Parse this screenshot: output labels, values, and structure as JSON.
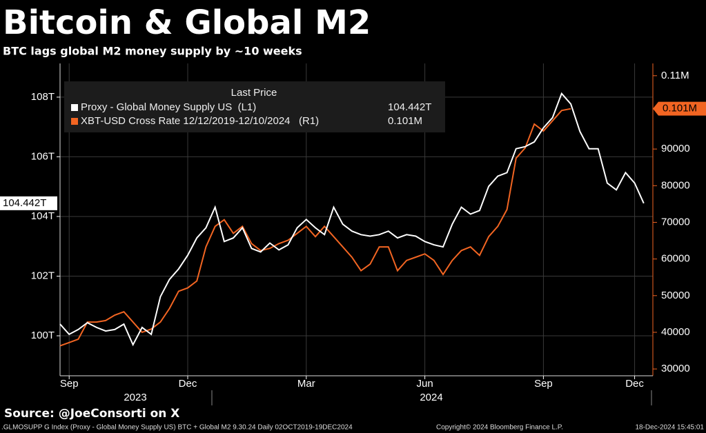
{
  "chart_data": {
    "type": "line",
    "title": "Bitcoin & Global M2",
    "subtitle": "BTC lags global M2 money supply by ~10 weeks",
    "source": "Source: @JoeConsorti on X",
    "footer_left": ".GLMOSUPP G Index (Proxy - Global Money Supply US) BTC + Global M2 9.30.24  Daily 02OCT2019-19DEC2024",
    "footer_center": "Copyright© 2024 Bloomberg Finance L.P.",
    "footer_right": "18-Dec-2024 15:45:01",
    "legend_title": "Last Price",
    "years": [
      "2023",
      "2024"
    ],
    "categories": [
      null,
      "Sep",
      null,
      null,
      null,
      null,
      null,
      null,
      null,
      null,
      null,
      null,
      null,
      null,
      "Dec",
      null,
      null,
      null,
      null,
      null,
      null,
      null,
      null,
      null,
      null,
      null,
      null,
      "Mar",
      null,
      null,
      null,
      null,
      null,
      null,
      null,
      null,
      null,
      null,
      null,
      null,
      "Jun",
      null,
      null,
      null,
      null,
      null,
      null,
      null,
      null,
      null,
      null,
      null,
      null,
      "Sep",
      null,
      null,
      null,
      null,
      null,
      null,
      null,
      null,
      null,
      "Dec",
      null,
      null
    ],
    "series": [
      {
        "name": "Proxy - Global Money Supply US  (L1)",
        "color": "#ffffff",
        "axis": "y",
        "last_price": {
          "value": 104.442,
          "label": "104.442T"
        },
        "values": [
          100.39,
          100.05,
          100.21,
          100.44,
          100.28,
          100.16,
          100.21,
          100.39,
          99.7,
          100.28,
          100.05,
          101.31,
          101.89,
          102.24,
          102.7,
          103.28,
          103.62,
          104.31,
          103.16,
          103.28,
          103.62,
          102.93,
          102.81,
          103.11,
          102.88,
          103.05,
          103.62,
          103.9,
          103.62,
          103.39,
          104.31,
          103.74,
          103.51,
          103.39,
          103.34,
          103.39,
          103.51,
          103.28,
          103.39,
          103.34,
          103.16,
          103.05,
          102.98,
          103.74,
          104.31,
          104.08,
          104.2,
          105.01,
          105.35,
          105.47,
          106.27,
          106.34,
          106.5,
          106.97,
          107.31,
          108.12,
          107.77,
          106.85,
          106.27,
          106.27,
          105.12,
          104.89,
          105.47,
          105.12,
          104.442,
          null
        ]
      },
      {
        "name": "XBT-USD Cross Rate 12/12/2019-12/10/2024   (R1)",
        "color": "#f26522",
        "axis": "y2",
        "last_price": {
          "value": 101000,
          "label": "0.101M"
        },
        "values": [
          36300,
          37200,
          38100,
          42800,
          42800,
          43200,
          44700,
          45600,
          42800,
          40000,
          40900,
          42800,
          46500,
          51200,
          52100,
          54000,
          63300,
          68900,
          70700,
          67000,
          68900,
          64200,
          62300,
          62900,
          64200,
          65100,
          67000,
          68900,
          66100,
          68900,
          66100,
          63300,
          60500,
          56800,
          58600,
          63300,
          63300,
          56800,
          59600,
          60500,
          61400,
          59600,
          55800,
          59600,
          62300,
          63300,
          61000,
          66100,
          68900,
          73500,
          87500,
          90300,
          96800,
          94900,
          97700,
          100500,
          101000,
          null,
          null,
          null,
          null,
          null,
          null,
          null,
          null,
          null
        ]
      }
    ],
    "ylim": [
      98.66,
      109.13
    ],
    "yticks": [
      {
        "value": 100,
        "label": "100T"
      },
      {
        "value": 102,
        "label": "102T"
      },
      {
        "value": 104,
        "label": "104T"
      },
      {
        "value": 106,
        "label": "106T"
      },
      {
        "value": 108,
        "label": "108T"
      }
    ],
    "y2lim": [
      28140,
      113350
    ],
    "y2ticks": [
      30000,
      40000,
      50000,
      60000,
      70000,
      80000,
      90000,
      {
        "value": 110000,
        "label": "0.11M"
      }
    ],
    "grid": true
  }
}
